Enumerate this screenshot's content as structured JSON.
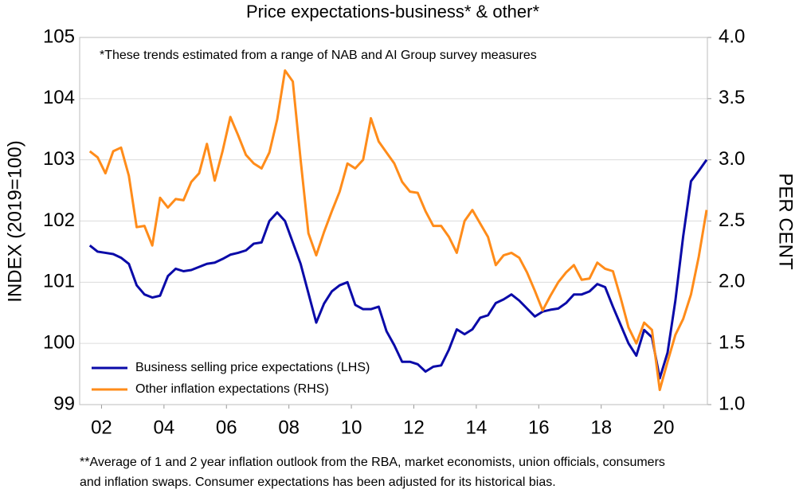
{
  "chart_data": {
    "type": "line",
    "title": "Price expectations-business* & other*",
    "annotation": "*These trends estimated from a range of NAB and AI Group survey measures",
    "y_label": "INDEX (2019=100)",
    "y2_label": "PER CENT",
    "footnote": [
      "**Average of 1 and 2 year inflation outlook from the RBA, market economists, union officials, consumers",
      "and inflation swaps. Consumer expectations has been adjusted for its historical bias."
    ],
    "x": [
      2001.625,
      2001.875,
      2002.125,
      2002.375,
      2002.625,
      2002.875,
      2003.125,
      2003.375,
      2003.625,
      2003.875,
      2004.125,
      2004.375,
      2004.625,
      2004.875,
      2005.125,
      2005.375,
      2005.625,
      2005.875,
      2006.125,
      2006.375,
      2006.625,
      2006.875,
      2007.125,
      2007.375,
      2007.625,
      2007.875,
      2008.125,
      2008.375,
      2008.625,
      2008.875,
      2009.125,
      2009.375,
      2009.625,
      2009.875,
      2010.125,
      2010.375,
      2010.625,
      2010.875,
      2011.125,
      2011.375,
      2011.625,
      2011.875,
      2012.125,
      2012.375,
      2012.625,
      2012.875,
      2013.125,
      2013.375,
      2013.625,
      2013.875,
      2014.125,
      2014.375,
      2014.625,
      2014.875,
      2015.125,
      2015.375,
      2015.625,
      2015.875,
      2016.125,
      2016.375,
      2016.625,
      2016.875,
      2017.125,
      2017.375,
      2017.625,
      2017.875,
      2018.125,
      2018.375,
      2018.625,
      2018.875,
      2019.125,
      2019.375,
      2019.625,
      2019.875,
      2020.125,
      2020.375,
      2020.625,
      2020.875,
      2021.125,
      2021.375
    ],
    "series": [
      {
        "name": "Business selling price expectations (LHS)",
        "color": "#0a0aa8",
        "axis": "y",
        "values": [
          101.6,
          101.5,
          101.48,
          101.46,
          101.4,
          101.3,
          100.95,
          100.8,
          100.75,
          100.78,
          101.1,
          101.22,
          101.18,
          101.2,
          101.25,
          101.3,
          101.32,
          101.38,
          101.45,
          101.48,
          101.52,
          101.63,
          101.65,
          102.0,
          102.14,
          102.0,
          101.65,
          101.3,
          100.82,
          100.34,
          100.65,
          100.85,
          100.95,
          101.0,
          100.63,
          100.56,
          100.56,
          100.6,
          100.2,
          99.97,
          99.7,
          99.7,
          99.66,
          99.54,
          99.62,
          99.64,
          99.9,
          100.23,
          100.15,
          100.23,
          100.42,
          100.46,
          100.66,
          100.72,
          100.8,
          100.7,
          100.57,
          100.44,
          100.52,
          100.55,
          100.57,
          100.66,
          100.8,
          100.8,
          100.85,
          100.97,
          100.92,
          100.6,
          100.3,
          100.0,
          99.8,
          100.22,
          100.1,
          99.43,
          99.85,
          100.7,
          101.75,
          102.65,
          102.82,
          103.0
        ]
      },
      {
        "name": "Other inflation expectations (RHS)",
        "color": "#ff8c1a",
        "axis": "y2",
        "values": [
          3.07,
          3.02,
          2.89,
          3.07,
          3.1,
          2.87,
          2.45,
          2.46,
          2.3,
          2.69,
          2.61,
          2.68,
          2.67,
          2.82,
          2.89,
          3.13,
          2.83,
          3.07,
          3.35,
          3.2,
          3.04,
          2.97,
          2.93,
          3.06,
          3.33,
          3.73,
          3.64,
          3.0,
          2.4,
          2.22,
          2.41,
          2.58,
          2.74,
          2.97,
          2.93,
          3.0,
          3.34,
          3.15,
          3.06,
          2.97,
          2.82,
          2.74,
          2.73,
          2.58,
          2.46,
          2.46,
          2.37,
          2.24,
          2.5,
          2.59,
          2.48,
          2.37,
          2.14,
          2.22,
          2.24,
          2.2,
          2.08,
          1.93,
          1.77,
          1.89,
          2.0,
          2.08,
          2.14,
          2.02,
          2.03,
          2.16,
          2.11,
          2.09,
          1.87,
          1.63,
          1.5,
          1.67,
          1.61,
          1.12,
          1.35,
          1.57,
          1.7,
          1.9,
          2.21,
          2.59
        ]
      }
    ],
    "xlim": [
      2001.3,
      2021.4
    ],
    "xticks": [
      {
        "value": 2002,
        "label": "02"
      },
      {
        "value": 2004,
        "label": "04"
      },
      {
        "value": 2006,
        "label": "06"
      },
      {
        "value": 2008,
        "label": "08"
      },
      {
        "value": 2010,
        "label": "10"
      },
      {
        "value": 2012,
        "label": "12"
      },
      {
        "value": 2014,
        "label": "14"
      },
      {
        "value": 2016,
        "label": "16"
      },
      {
        "value": 2018,
        "label": "18"
      },
      {
        "value": 2020,
        "label": "20"
      }
    ],
    "ylim": [
      99,
      105
    ],
    "yticks": [
      99,
      100,
      101,
      102,
      103,
      104,
      105
    ],
    "y2lim": [
      1,
      4
    ],
    "y2ticks": [
      {
        "value": 1,
        "label": "1.0"
      },
      1.5,
      {
        "value": 2,
        "label": "2.0"
      },
      2.5,
      {
        "value": 3,
        "label": "3.0"
      },
      3.5,
      {
        "value": 4,
        "label": "4.0"
      }
    ],
    "grid": true,
    "legend": "lower left"
  }
}
